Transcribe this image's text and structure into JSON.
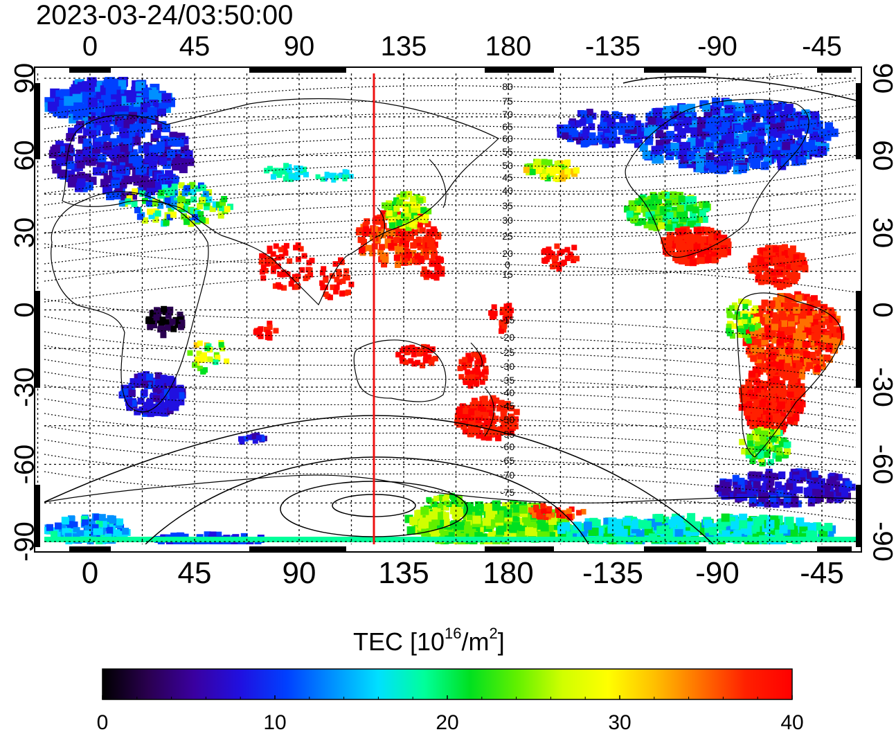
{
  "timestamp": "2023-03-24/03:50:00",
  "map": {
    "lon_ticks": [
      "0",
      "45",
      "90",
      "135",
      "180",
      "-135",
      "-90",
      "-45"
    ],
    "lat_ticks": [
      "90",
      "60",
      "30",
      "0",
      "-30",
      "-60",
      "-90"
    ],
    "magnetic_latitude_labels": [
      "80",
      "75",
      "70",
      "65",
      "60",
      "55",
      "50",
      "45",
      "40",
      "35",
      "30",
      "25",
      "20",
      "15",
      "0",
      "-15",
      "-20",
      "-25",
      "-30",
      "-35",
      "-40",
      "-45",
      "-50",
      "-55",
      "-60",
      "-65",
      "-70",
      "-75"
    ],
    "meridian_line_lon": 122,
    "meridian_color": "#ee1111"
  },
  "colorbar": {
    "title_prefix": "TEC  [10",
    "title_sup1": "16",
    "title_mid": "/m",
    "title_sup2": "2",
    "title_suffix": "]",
    "min": 0,
    "max": 40,
    "tick_labels": [
      "0",
      "10",
      "20",
      "30",
      "40"
    ],
    "colors": [
      "#000000",
      "#2a0050",
      "#3a00a0",
      "#2010e0",
      "#0040ff",
      "#0090ff",
      "#00e0ff",
      "#00ff9a",
      "#00e020",
      "#60f000",
      "#d0ff00",
      "#ffff00",
      "#ffc000",
      "#ff7000",
      "#ff2000",
      "#ff0000"
    ]
  }
}
